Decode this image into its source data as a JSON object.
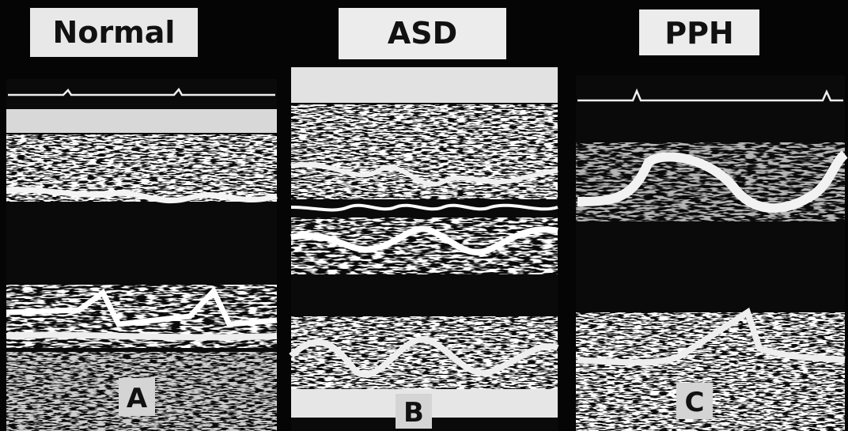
{
  "panels": [
    {
      "title": "Normal",
      "letter": "A"
    },
    {
      "title": "ASD",
      "letter": "B"
    },
    {
      "title": "PPH",
      "letter": "C"
    }
  ]
}
